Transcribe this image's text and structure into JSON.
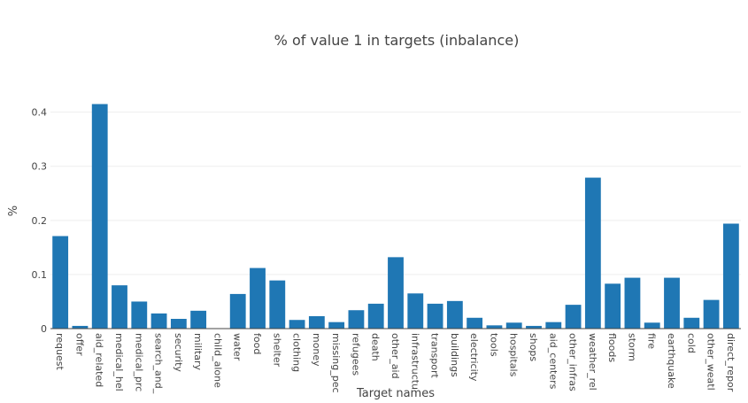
{
  "chart_data": {
    "type": "bar",
    "title": "% of value 1 in targets (inbalance)",
    "xlabel": "Target names",
    "ylabel": "%",
    "ylim": [
      0,
      0.46
    ],
    "yticks": [
      "0",
      "0.1",
      "0.2",
      "0.3",
      "0.4"
    ],
    "grid": true,
    "bar_color": "#1f77b4",
    "categories": [
      "request",
      "offer",
      "aid_related",
      "medical_hel",
      "medical_prc",
      "search_and_",
      "security",
      "military",
      "child_alone",
      "water",
      "food",
      "shelter",
      "clothing",
      "money",
      "missing_pec",
      "refugees",
      "death",
      "other_aid",
      "infrastructu",
      "transport",
      "buildings",
      "electricity",
      "tools",
      "hospitals",
      "shops",
      "aid_centers",
      "other_infras",
      "weather_rel",
      "floods",
      "storm",
      "fire",
      "earthquake",
      "cold",
      "other_weatl",
      "direct_repor"
    ],
    "values": [
      0.171,
      0.005,
      0.415,
      0.08,
      0.05,
      0.028,
      0.018,
      0.033,
      0.0,
      0.064,
      0.112,
      0.089,
      0.016,
      0.023,
      0.012,
      0.034,
      0.046,
      0.132,
      0.065,
      0.046,
      0.051,
      0.02,
      0.006,
      0.011,
      0.005,
      0.012,
      0.044,
      0.279,
      0.083,
      0.094,
      0.011,
      0.094,
      0.02,
      0.053,
      0.194
    ]
  }
}
